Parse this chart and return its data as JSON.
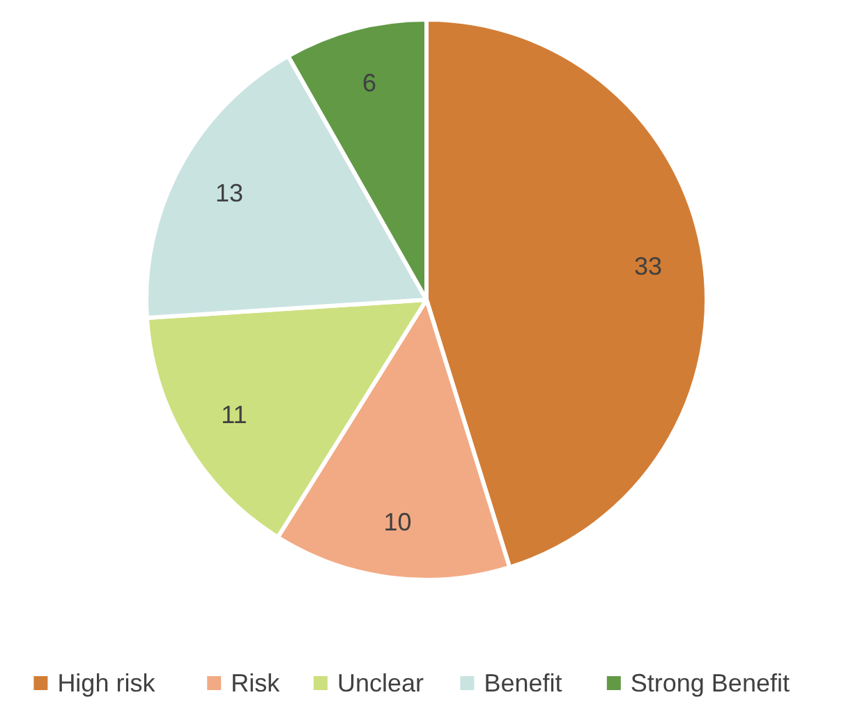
{
  "chart_data": {
    "type": "pie",
    "categories": [
      "High risk",
      "Risk",
      "Unclear",
      "Benefit",
      "Strong Benefit"
    ],
    "values": [
      33,
      10,
      11,
      13,
      6
    ],
    "colors": [
      "#d27d35",
      "#f2aa84",
      "#cde07f",
      "#c9e3e1",
      "#619945"
    ],
    "data_labels": true,
    "legend": "bottom"
  }
}
